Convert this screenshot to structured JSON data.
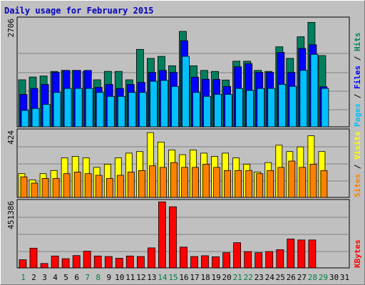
{
  "chart_data": {
    "type": "bar",
    "title": "Daily usage for February 2015",
    "categories": [
      "1",
      "2",
      "3",
      "4",
      "5",
      "6",
      "7",
      "8",
      "9",
      "10",
      "11",
      "12",
      "13",
      "14",
      "15",
      "16",
      "17",
      "18",
      "19",
      "20",
      "21",
      "22",
      "23",
      "24",
      "25",
      "26",
      "27",
      "28",
      "29",
      "30",
      "31"
    ],
    "weekend_days": [
      1,
      7,
      8,
      14,
      15,
      21,
      22,
      28,
      29
    ],
    "panels": [
      {
        "id": "top",
        "ymax_label": "2706",
        "ylim": [
          0,
          2706
        ],
        "right_label": [
          {
            "text": "Pages",
            "color": "#00c0ff"
          },
          {
            "text": " / ",
            "color": "#000000"
          },
          {
            "text": "Files",
            "color": "#0000ff"
          },
          {
            "text": " / ",
            "color": "#000000"
          },
          {
            "text": "Hits",
            "color": "#007f5f"
          }
        ],
        "series": [
          {
            "name": "Hits",
            "color": "#007f5f",
            "values": [
              1175,
              1245,
              1270,
              1385,
              1410,
              1410,
              1385,
              1175,
              1385,
              1385,
              1175,
              1935,
              1710,
              1760,
              1525,
              2385,
              1525,
              1410,
              1385,
              1170,
              1640,
              1640,
              1410,
              1385,
              2000,
              1710,
              2250,
              2610,
              1780,
              0,
              0
            ]
          },
          {
            "name": "Files",
            "color": "#0000ff",
            "values": [
              810,
              960,
              1060,
              1360,
              1410,
              1410,
              1410,
              990,
              1060,
              960,
              1060,
              1110,
              1360,
              1410,
              1360,
              2150,
              1240,
              1190,
              1185,
              1010,
              1500,
              1580,
              1360,
              1360,
              1860,
              1360,
              1960,
              2050,
              1000,
              0,
              0
            ]
          },
          {
            "name": "Pages",
            "color": "#00c0ff",
            "values": [
              410,
              460,
              560,
              860,
              960,
              960,
              960,
              860,
              760,
              760,
              860,
              860,
              1140,
              1160,
              1010,
              1760,
              860,
              760,
              810,
              810,
              960,
              910,
              960,
              960,
              1060,
              1010,
              1410,
              1810,
              960,
              0,
              0
            ]
          }
        ]
      },
      {
        "id": "mid",
        "ymax_label": "424",
        "ylim": [
          0,
          424
        ],
        "right_label": [
          {
            "text": "Sites",
            "color": "#ff8000"
          },
          {
            "text": " / ",
            "color": "#000000"
          },
          {
            "text": "Visits",
            "color": "#ffff00"
          }
        ],
        "series": [
          {
            "name": "Visits",
            "color": "#ffff00",
            "values": [
              150,
              110,
              150,
              170,
              250,
              260,
              250,
              190,
              210,
              250,
              280,
              290,
              410,
              350,
              300,
              270,
              300,
              280,
              260,
              280,
              250,
              210,
              160,
              220,
              330,
              290,
              320,
              390,
              290,
              0,
              0
            ]
          },
          {
            "name": "Sites",
            "color": "#ff8000",
            "values": [
              130,
              90,
              120,
              120,
              150,
              160,
              150,
              140,
              120,
              140,
              160,
              170,
              200,
              190,
              220,
              190,
              190,
              210,
              190,
              170,
              170,
              170,
              150,
              170,
              190,
              230,
              190,
              210,
              170,
              0,
              0
            ]
          }
        ]
      },
      {
        "id": "bot",
        "ymax_label": "451386",
        "ylim": [
          0,
          451386
        ],
        "right_label": [
          {
            "text": "KBytes",
            "color": "#ff0000"
          }
        ],
        "series": [
          {
            "name": "KBytes",
            "color": "#ff0000",
            "values": [
              55000,
              133000,
              30000,
              80000,
              62000,
              83000,
              113000,
              80000,
              77000,
              65000,
              80000,
              77000,
              135000,
              445000,
              412000,
              140000,
              77000,
              82000,
              75000,
              103000,
              170000,
              110000,
              103000,
              110000,
              123000,
              195000,
              188000,
              188000,
              0,
              0,
              0
            ]
          }
        ]
      }
    ],
    "xtick_color_weekday": "#007f3f",
    "xtick_color_default": "#000000"
  }
}
